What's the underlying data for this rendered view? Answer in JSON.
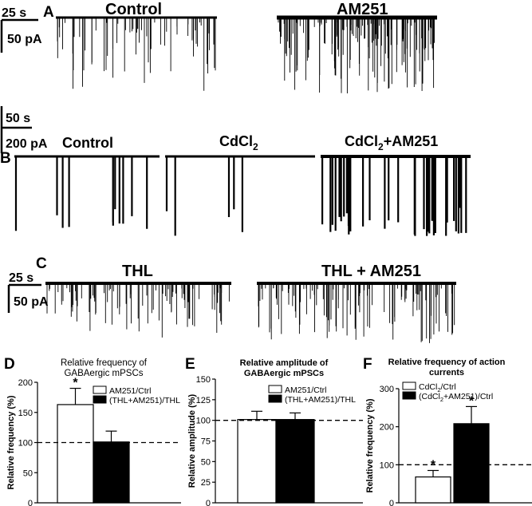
{
  "panels": {
    "A": {
      "letter": "A",
      "time_scale": "25 s",
      "amp_scale": "50 pA",
      "traces": [
        {
          "label": "Control"
        },
        {
          "label": "AM251"
        }
      ]
    },
    "B": {
      "letter": "B",
      "time_scale": "50 s",
      "amp_scale": "200 pA",
      "traces": [
        {
          "label": "Control"
        },
        {
          "label": "CdCl2"
        },
        {
          "label": "CdCl2+AM251"
        }
      ]
    },
    "C": {
      "letter": "C",
      "time_scale": "25 s",
      "amp_scale": "50 pA",
      "traces": [
        {
          "label": "THL"
        },
        {
          "label": "THL + AM251"
        }
      ]
    }
  },
  "chart_data": [
    {
      "panel": "D",
      "type": "bar",
      "title": "Relative frequency of GABAergic mPSCs",
      "ylabel": "Relative frequency (%)",
      "ylim": [
        0,
        200
      ],
      "yticks": [
        0,
        50,
        100,
        150,
        200
      ],
      "reference_line": 100,
      "series": [
        {
          "name": "AM251/Ctrl",
          "value": 163,
          "error": 27,
          "fill": "#ffffff",
          "significant": true
        },
        {
          "name": "(THL+AM251)/THL",
          "value": 101,
          "error": 18,
          "fill": "#000000",
          "significant": false
        }
      ]
    },
    {
      "panel": "E",
      "type": "bar",
      "title": "Relative amplitude of GABAergic mPSCs",
      "ylabel": "Relative amplitude (%)",
      "ylim": [
        0,
        150
      ],
      "yticks": [
        0,
        25,
        50,
        75,
        100,
        125,
        150
      ],
      "reference_line": 100,
      "series": [
        {
          "name": "AM251/Ctrl",
          "value": 101,
          "error": 10,
          "fill": "#ffffff",
          "significant": false
        },
        {
          "name": "(THL+AM251)/THL",
          "value": 101,
          "error": 8,
          "fill": "#000000",
          "significant": false
        }
      ]
    },
    {
      "panel": "F",
      "type": "bar",
      "title": "Relative frequency of action currents",
      "ylabel": "Relative frequency (%)",
      "ylim": [
        0,
        300
      ],
      "yticks": [
        0,
        100,
        200,
        300
      ],
      "reference_line": 100,
      "series": [
        {
          "name": "CdCl2/Ctrl",
          "value": 68,
          "error": 17,
          "fill": "#ffffff",
          "significant": true
        },
        {
          "name": "(CdCl2+AM251)/Ctrl",
          "value": 208,
          "error": 45,
          "fill": "#000000",
          "significant": true
        }
      ]
    }
  ]
}
